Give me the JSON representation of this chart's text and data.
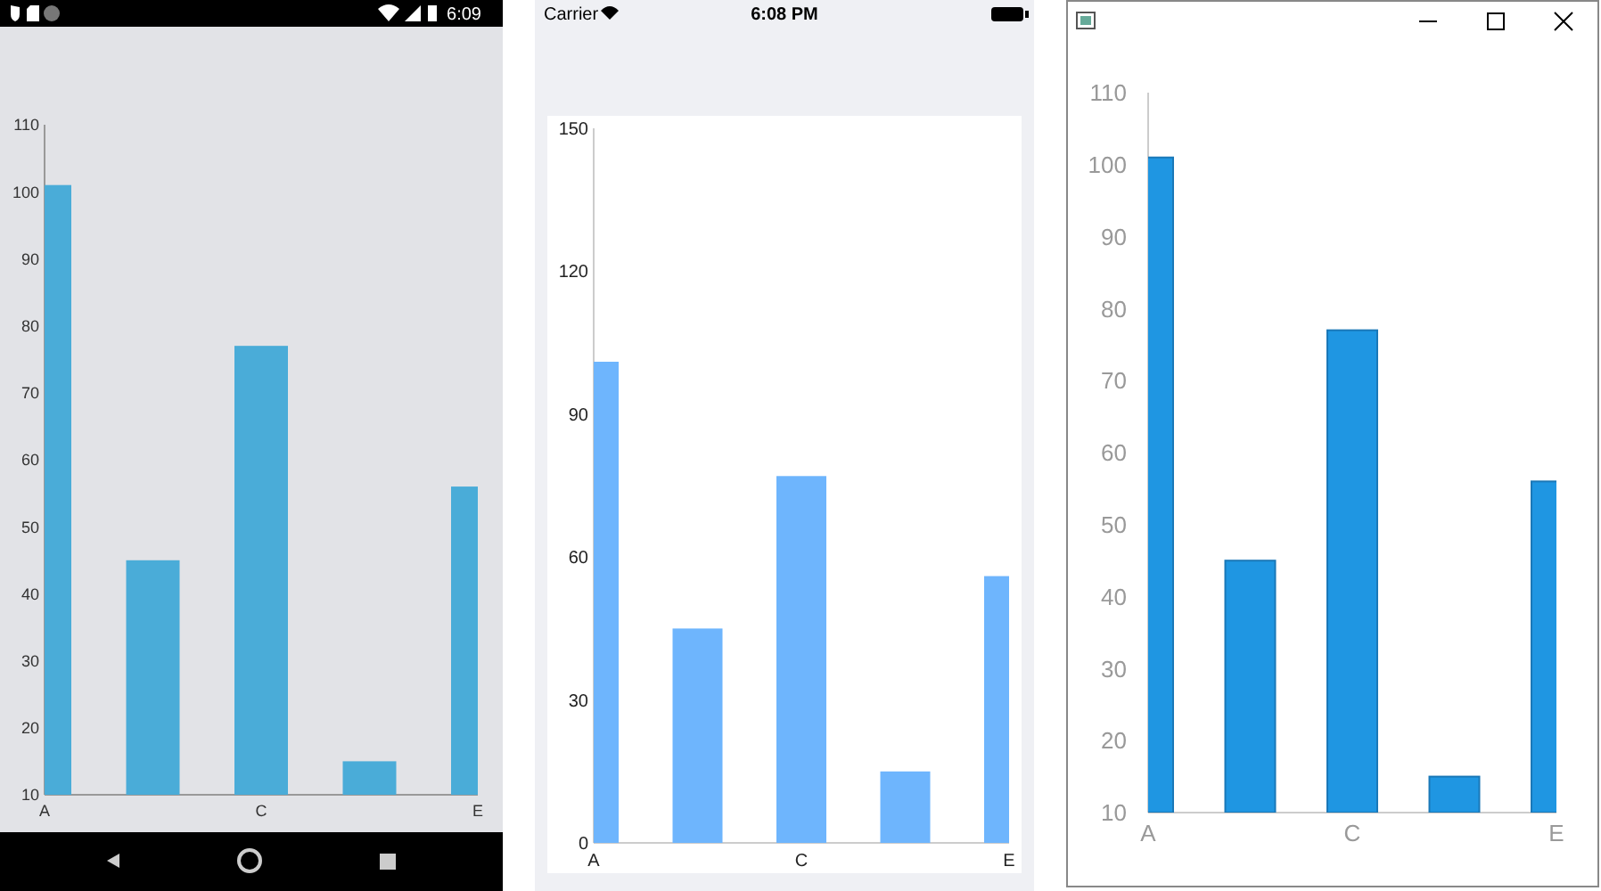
{
  "chart_data": [
    {
      "type": "bar",
      "categories": [
        "A",
        null,
        "C",
        null,
        "E"
      ],
      "values": [
        101,
        45,
        77,
        15,
        56
      ],
      "color": "#4aacd8",
      "ylim": [
        10,
        110
      ],
      "yticks": [
        10,
        20,
        30,
        40,
        50,
        60,
        70,
        80,
        90,
        100,
        110
      ],
      "annotations": [
        "6:09"
      ]
    },
    {
      "type": "bar",
      "categories": [
        "A",
        null,
        "C",
        null,
        "E"
      ],
      "values": [
        101,
        45,
        77,
        15,
        56
      ],
      "color": "#6eb5fd",
      "ylim": [
        0,
        150
      ],
      "yticks": [
        0,
        30,
        60,
        90,
        120,
        150
      ],
      "annotations": [
        "Carrier",
        "6:08 PM"
      ]
    },
    {
      "type": "bar",
      "categories": [
        "A",
        null,
        "C",
        null,
        "E"
      ],
      "values": [
        101,
        45,
        77,
        15,
        56
      ],
      "color": "#1f96e2",
      "ylim": [
        10,
        110
      ],
      "yticks": [
        10,
        20,
        30,
        40,
        50,
        60,
        70,
        80,
        90,
        100,
        110
      ]
    }
  ]
}
